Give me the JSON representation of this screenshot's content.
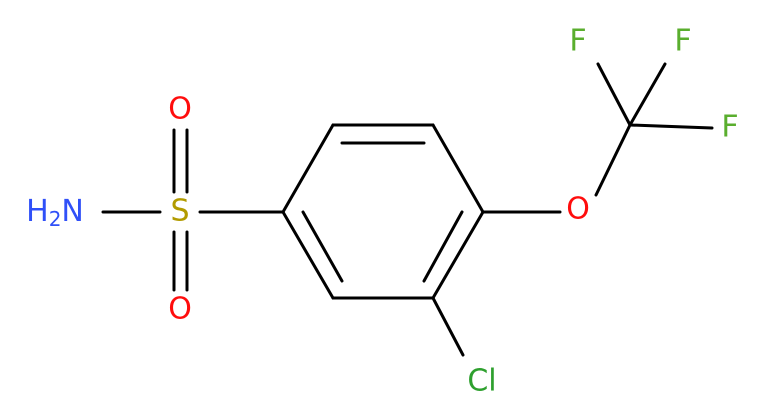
{
  "atoms": {
    "amine": {
      "parts": [
        "H",
        "2",
        "N"
      ]
    },
    "sulfur": "S",
    "oxygen_top": "O",
    "oxygen_bottom": "O",
    "chlorine": "Cl",
    "ether_oxygen": "O",
    "fluorine_1": "F",
    "fluorine_2": "F",
    "fluorine_3": "F"
  }
}
